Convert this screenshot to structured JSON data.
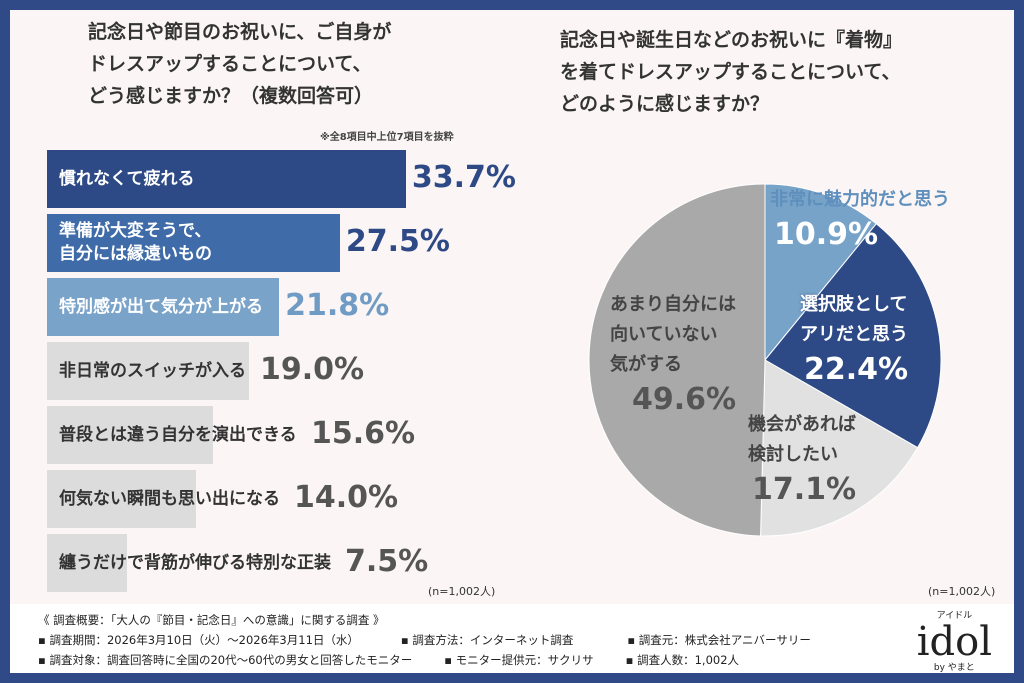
{
  "left": {
    "question": [
      "記念日や節目のお祝いに、ご自身が",
      "ドレスアップすることについて、",
      "どう感じますか？（複数回答可）"
    ],
    "note": "※全8項目中上位7項目を抜粋",
    "n": "(n=1,002人)"
  },
  "right": {
    "question": [
      "記念日や誕生日などのお祝いに『着物』",
      "を着てドレスアップすることについて、",
      "どのように感じますか？"
    ],
    "n": "(n=1,002人)"
  },
  "chart_data": [
    {
      "type": "bar",
      "orientation": "horizontal",
      "categories": [
        "慣れなくて疲れる",
        "準備が大変そうで、\n自分には縁遠いもの",
        "特別感が出て気分が上がる",
        "非日常のスイッチが入る",
        "普段とは違う自分を演出できる",
        "何気ない瞬間も思い出になる",
        "纏うだけで背筋が伸びる特別な正装"
      ],
      "values": [
        33.7,
        27.5,
        21.8,
        19.0,
        15.6,
        14.0,
        7.5
      ],
      "labels": [
        "33.7%",
        "27.5%",
        "21.8%",
        "19.0%",
        "15.6%",
        "14.0%",
        "7.5%"
      ],
      "colors": [
        "#2e4a86",
        "#3f6ba8",
        "#7aa3c9",
        "#dcdcdc",
        "#dcdcdc",
        "#dcdcdc",
        "#dcdcdc"
      ]
    },
    {
      "type": "pie",
      "categories": [
        "非常に魅力的だと思う",
        "選択肢として\nアリだと思う",
        "機会があれば\n検討したい",
        "あまり自分には\n向いていない\n気がする"
      ],
      "values": [
        10.9,
        22.4,
        17.1,
        49.6
      ],
      "labels": [
        "10.9%",
        "22.4%",
        "17.1%",
        "49.6%"
      ],
      "colors": [
        "#77a3c8",
        "#2e4a86",
        "#e1e1e1",
        "#a9a9a9"
      ]
    }
  ],
  "footer": {
    "title": "《 調査概要：「大人の『節目・記念日』への意識」に関する調査 》",
    "rows": [
      [
        "▪ 調査期間：2026年3月10日（火）～2026年3月11日（水）",
        "▪ 調査方法：インターネット調査",
        "▪ 調査元：株式会社アニバーサリー"
      ],
      [
        "▪ 調査対象：調査回答時に全国の20代～60代の男女と回答したモニター",
        "▪ モニター提供元：サクリサ",
        "▪ 調査人数：1,002人"
      ]
    ],
    "logo": {
      "kana": "アイドル",
      "word": "idol",
      "sub": "by やまと"
    }
  }
}
